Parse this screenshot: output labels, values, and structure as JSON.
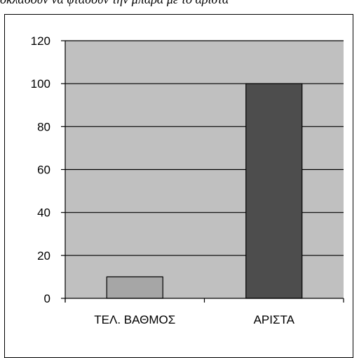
{
  "caption": "οκλασουν να φτασουν την μπαρα με το αριστα",
  "colors": {
    "plot_background": "#c0c0c0",
    "gridline": "#000000",
    "bar_1": "#a6a6a6",
    "bar_2": "#4d4d4d"
  },
  "chart_data": {
    "type": "bar",
    "categories": [
      "ΤΕΛ. ΒΑΘΜΟΣ",
      "ΑΡΙΣΤΑ"
    ],
    "values": [
      10,
      100
    ],
    "ylim": [
      0,
      120
    ],
    "yticks": [
      "0",
      "20",
      "40",
      "60",
      "80",
      "100",
      "120"
    ],
    "title": "",
    "xlabel": "",
    "ylabel": "",
    "grid": true,
    "legend": "none"
  }
}
